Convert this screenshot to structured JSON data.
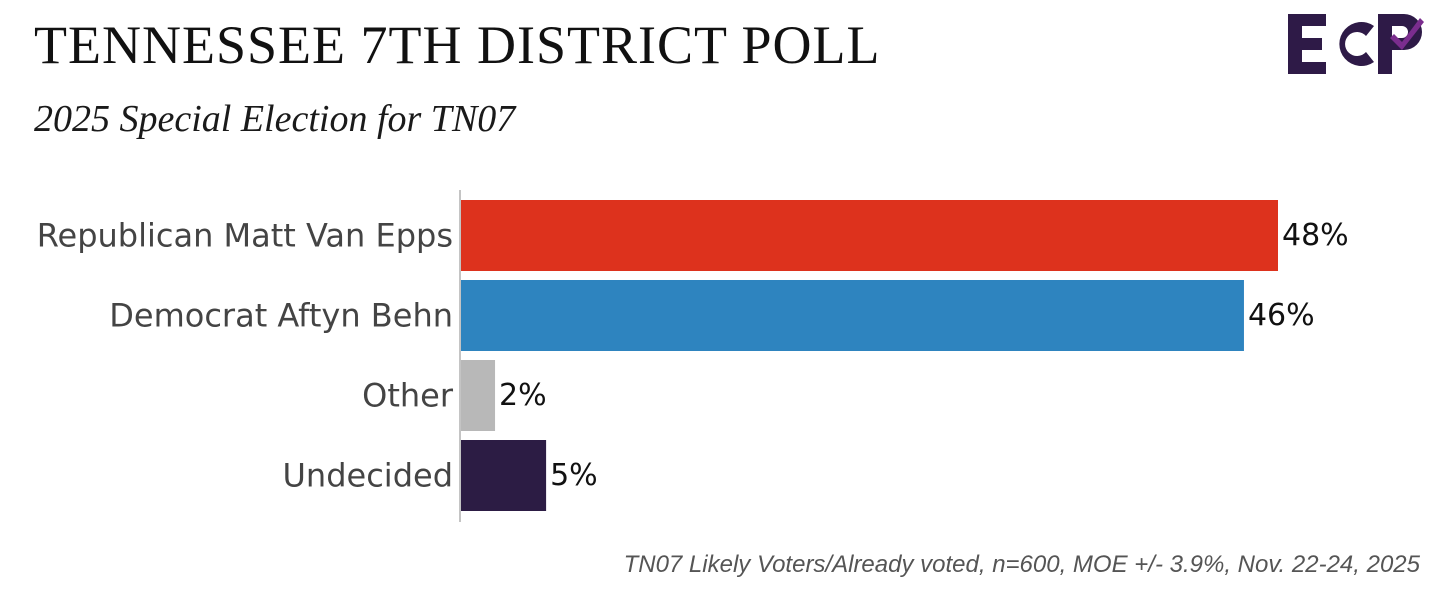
{
  "header": {
    "title": "TENNESSEE 7TH DISTRICT POLL",
    "subtitle": "2025 Special Election for TN07"
  },
  "logo": {
    "text": "ECP",
    "primary_color": "#2e1a47",
    "accent_color": "#7b2d8e"
  },
  "footer": {
    "note": "TN07 Likely Voters/Already voted, n=600, MOE +/- 3.9%, Nov. 22-24, 2025"
  },
  "chart_data": {
    "type": "bar",
    "orientation": "horizontal",
    "categories": [
      "Republican Matt Van Epps",
      "Democrat Aftyn Behn",
      "Other",
      "Undecided"
    ],
    "values": [
      48,
      46,
      2,
      5
    ],
    "value_labels": [
      "48%",
      "46%",
      "2%",
      "5%"
    ],
    "colors": [
      "#dd321d",
      "#2e84bf",
      "#b8b8b8",
      "#2c1c44"
    ],
    "xlim": [
      0,
      48
    ],
    "grid": false,
    "legend": "none",
    "title": "TENNESSEE 7TH DISTRICT POLL",
    "subtitle": "2025 Special Election for TN07"
  }
}
